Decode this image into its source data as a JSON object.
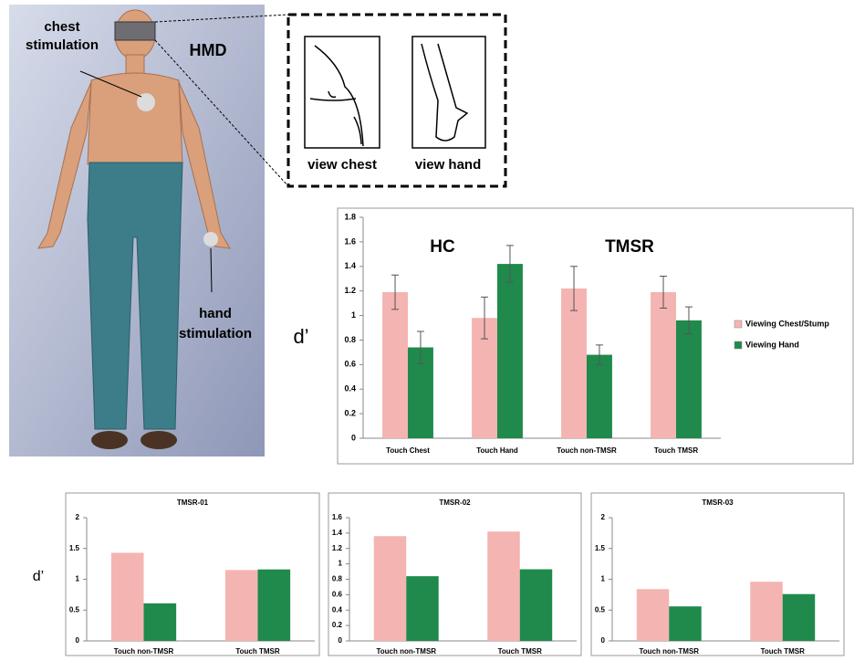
{
  "figure": {
    "chest_stimulation": [
      "chest",
      "stimulation"
    ],
    "hmd": "HMD",
    "hand_stimulation": [
      "hand",
      "stimulation"
    ],
    "view_chest": "view chest",
    "view_hand": "view hand"
  },
  "chart_data": [
    {
      "type": "bar",
      "ylabel": "d’",
      "annotations": [
        "HC",
        "TMSR"
      ],
      "categories": [
        "Touch Chest",
        "Touch Hand",
        "Touch non-TMSR",
        "Touch TMSR"
      ],
      "series": [
        {
          "name": "Viewing Chest/Stump",
          "color": "#f4b4b2",
          "values": [
            1.19,
            0.98,
            1.22,
            1.19
          ],
          "errors": [
            0.14,
            0.17,
            0.18,
            0.13
          ]
        },
        {
          "name": "Viewing Hand",
          "color": "#1f8a4c",
          "values": [
            0.74,
            1.42,
            0.68,
            0.96
          ],
          "errors": [
            0.13,
            0.15,
            0.08,
            0.11
          ]
        }
      ],
      "ylim": [
        0,
        1.8
      ],
      "yticks": [
        0,
        0.2,
        0.4,
        0.6,
        0.8,
        1,
        1.2,
        1.4,
        1.6,
        1.8
      ],
      "legend": "right"
    },
    {
      "type": "bar",
      "title": "TMSR-01",
      "ylabel": "d’",
      "categories": [
        "Touch non-TMSR",
        "Touch TMSR"
      ],
      "series": [
        {
          "color": "#f4b4b2",
          "values": [
            1.43,
            1.15
          ]
        },
        {
          "color": "#1f8a4c",
          "values": [
            0.61,
            1.16
          ]
        }
      ],
      "ylim": [
        0,
        2
      ],
      "yticks": [
        0,
        0.5,
        1,
        1.5,
        2
      ]
    },
    {
      "type": "bar",
      "title": "TMSR-02",
      "categories": [
        "Touch non-TMSR",
        "Touch TMSR"
      ],
      "series": [
        {
          "color": "#f4b4b2",
          "values": [
            1.36,
            1.42
          ]
        },
        {
          "color": "#1f8a4c",
          "values": [
            0.84,
            0.93
          ]
        }
      ],
      "ylim": [
        0,
        1.6
      ],
      "yticks": [
        0,
        0.2,
        0.4,
        0.6,
        0.8,
        1,
        1.2,
        1.4,
        1.6
      ]
    },
    {
      "type": "bar",
      "title": "TMSR-03",
      "categories": [
        "Touch non-TMSR",
        "Touch TMSR"
      ],
      "series": [
        {
          "color": "#f4b4b2",
          "values": [
            0.84,
            0.96
          ]
        },
        {
          "color": "#1f8a4c",
          "values": [
            0.56,
            0.76
          ]
        }
      ],
      "ylim": [
        0,
        2
      ],
      "yticks": [
        0,
        0.5,
        1,
        1.5,
        2
      ]
    }
  ]
}
